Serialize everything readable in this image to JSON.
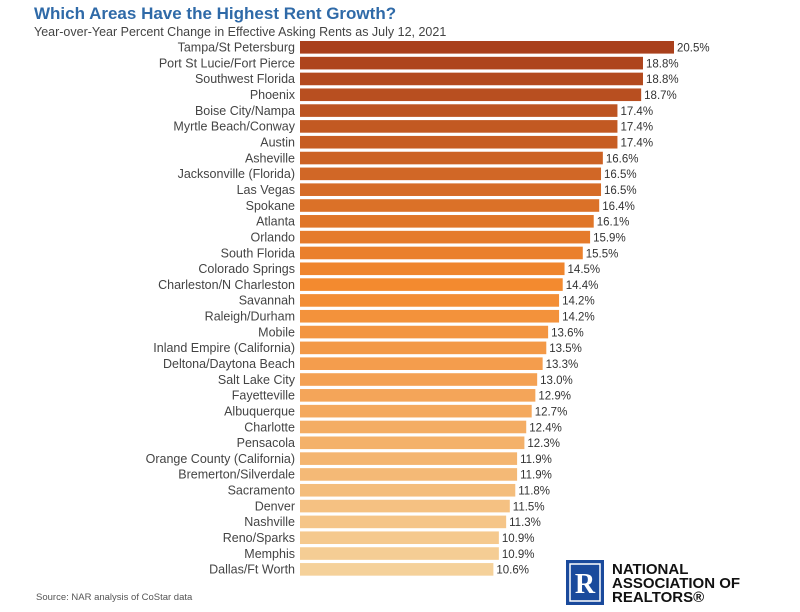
{
  "chart_data": {
    "type": "bar",
    "orientation": "horizontal",
    "title": "Which Areas Have the Highest Rent Growth?",
    "subtitle": "Year-over-Year Percent Change in Effective Asking Rents as July 12, 2021",
    "categories": [
      "Tampa/St Petersburg",
      "Port St Lucie/Fort Pierce",
      "Southwest Florida",
      "Phoenix",
      "Boise City/Nampa",
      "Myrtle Beach/Conway",
      "Austin",
      "Asheville",
      "Jacksonville (Florida)",
      "Las Vegas",
      "Spokane",
      "Atlanta",
      "Orlando",
      "South Florida",
      "Colorado Springs",
      "Charleston/N Charleston",
      "Savannah",
      "Raleigh/Durham",
      "Mobile",
      "Inland Empire (California)",
      "Deltona/Daytona Beach",
      "Salt Lake City",
      "Fayetteville",
      "Albuquerque",
      "Charlotte",
      "Pensacola",
      "Orange County (California)",
      "Bremerton/Silverdale",
      "Sacramento",
      "Denver",
      "Nashville",
      "Reno/Sparks",
      "Memphis",
      "Dallas/Ft Worth"
    ],
    "values": [
      20.5,
      18.8,
      18.8,
      18.7,
      17.4,
      17.4,
      17.4,
      16.6,
      16.5,
      16.5,
      16.4,
      16.1,
      15.9,
      15.5,
      14.5,
      14.4,
      14.2,
      14.2,
      13.6,
      13.5,
      13.3,
      13.0,
      12.9,
      12.7,
      12.4,
      12.3,
      11.9,
      11.9,
      11.8,
      11.5,
      11.3,
      10.9,
      10.9,
      10.6
    ],
    "value_labels": [
      "20.5%",
      "18.8%",
      "18.8%",
      "18.7%",
      "17.4%",
      "17.4%",
      "17.4%",
      "16.6%",
      "16.5%",
      "16.5%",
      "16.4%",
      "16.1%",
      "15.9%",
      "15.5%",
      "14.5%",
      "14.4%",
      "14.2%",
      "14.2%",
      "13.6%",
      "13.5%",
      "13.3%",
      "13.0%",
      "12.9%",
      "12.7%",
      "12.4%",
      "12.3%",
      "11.9%",
      "11.9%",
      "11.8%",
      "11.5%",
      "11.3%",
      "10.9%",
      "10.9%",
      "10.6%"
    ],
    "xlim": [
      0,
      20.5
    ],
    "colors": {
      "gradient_start": "#a9401c",
      "gradient_mid": "#f3892e",
      "gradient_end": "#f5d19a"
    },
    "grid": false,
    "legend": "none"
  },
  "source": "Source: NAR analysis of CoStar data",
  "logo": {
    "line1": "NATIONAL",
    "line2": "ASSOCIATION OF",
    "line3": "REALTORS®",
    "mark_letter": "R",
    "color": "#1a4a9c"
  }
}
